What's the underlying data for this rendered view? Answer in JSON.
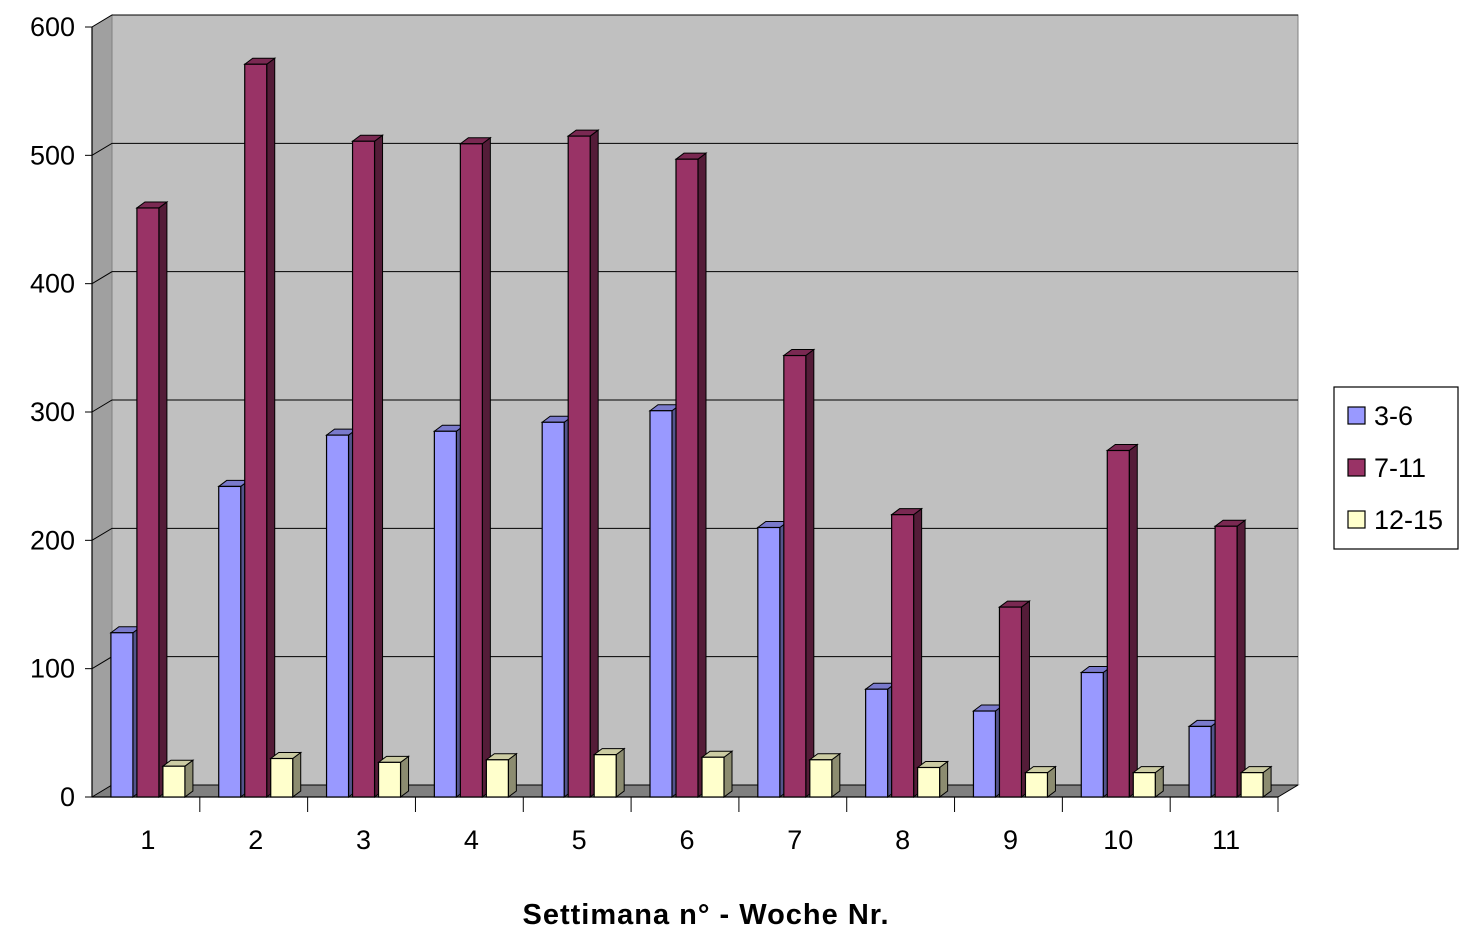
{
  "chart_data": {
    "type": "bar",
    "xlabel": "Settimana n° - Woche Nr.",
    "ylabel": "",
    "ylim": [
      0,
      600
    ],
    "yticks": [
      0,
      100,
      200,
      300,
      400,
      500,
      600
    ],
    "categories": [
      "1",
      "2",
      "3",
      "4",
      "5",
      "6",
      "7",
      "8",
      "9",
      "10",
      "11"
    ],
    "series": [
      {
        "name": "3-6",
        "color": "#9999ff",
        "values": [
          128,
          242,
          282,
          285,
          292,
          301,
          210,
          84,
          67,
          97,
          55
        ]
      },
      {
        "name": "7-11",
        "color": "#993366",
        "values": [
          459,
          571,
          511,
          509,
          515,
          497,
          344,
          220,
          148,
          270,
          211
        ]
      },
      {
        "name": "12-15",
        "color": "#ffffcc",
        "values": [
          24,
          30,
          27,
          29,
          33,
          31,
          29,
          23,
          19,
          19,
          19
        ]
      }
    ],
    "grid": true,
    "three_d": true,
    "plot_background": "#c0c0c0",
    "legend_position": "right"
  }
}
